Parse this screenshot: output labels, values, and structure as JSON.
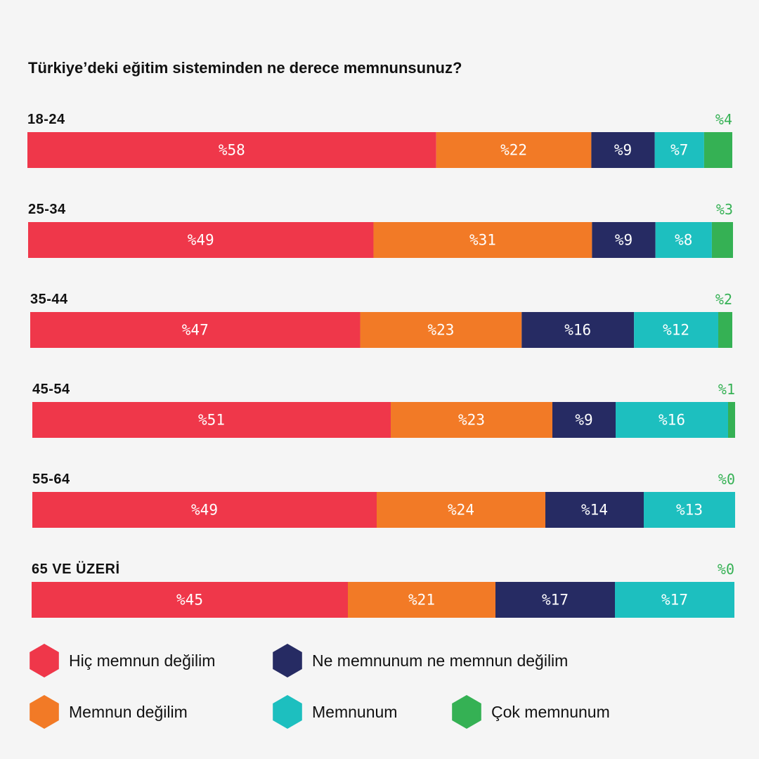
{
  "chart_data": {
    "type": "bar",
    "orientation": "horizontal",
    "stacked": true,
    "normalized": "percent",
    "title": "Türkiye’deki eğitim sisteminden ne derece memnunsunuz?",
    "value_prefix": "%",
    "categories": [
      "18-24",
      "25-34",
      "35-44",
      "45-54",
      "55-64",
      "65 VE ÜZERİ"
    ],
    "series": [
      {
        "name": "Hiç memnun değilim",
        "color": "#ef374a",
        "values": [
          58,
          49,
          47,
          51,
          49,
          45
        ]
      },
      {
        "name": "Memnun değilim",
        "color": "#f27a26",
        "values": [
          22,
          31,
          23,
          23,
          24,
          21
        ]
      },
      {
        "name": "Ne memnunum ne memnun değilim",
        "color": "#262b63",
        "values": [
          9,
          9,
          16,
          9,
          14,
          17
        ]
      },
      {
        "name": "Memnunum",
        "color": "#1dbfbf",
        "values": [
          7,
          8,
          12,
          16,
          13,
          17
        ]
      },
      {
        "name": "Çok memnunum",
        "color": "#35b154",
        "values": [
          4,
          3,
          2,
          1,
          0,
          0
        ]
      }
    ],
    "highlight_series_label_outside": "Çok memnunum",
    "legend": [
      "Hiç memnun değilim",
      "Ne memnunum ne memnun değilim",
      "Memnun değilim",
      "Memnunum",
      "Çok memnunum"
    ],
    "legend_position": "bottom",
    "xlim": [
      0,
      100
    ],
    "grid": false
  },
  "colors": {
    "background": "#f5f5f5",
    "text": "#111111",
    "label_on_bar": "#ffffff"
  }
}
